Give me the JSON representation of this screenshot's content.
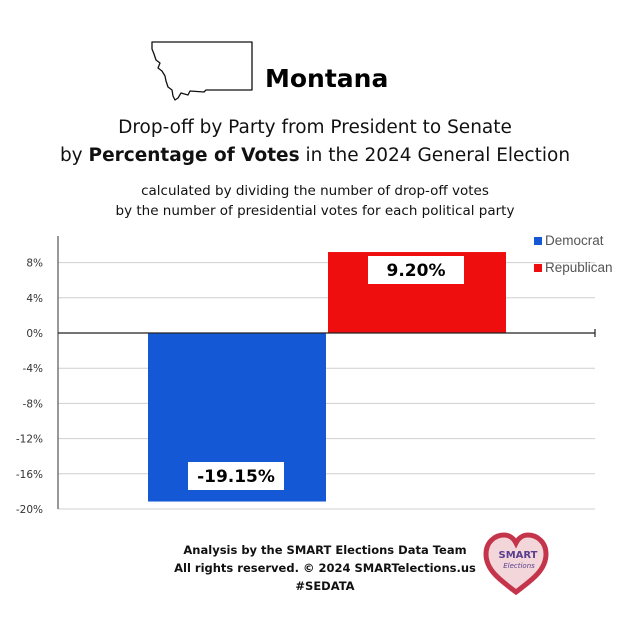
{
  "header": {
    "state_name": "Montana",
    "title_line1": "Drop-off by Party from President to Senate",
    "title_line2_prefix": "by ",
    "title_line2_bold": "Percentage of Votes",
    "title_line2_suffix": " in the 2024 General Election",
    "subtitle_line1": "calculated by dividing the number of drop-off votes",
    "subtitle_line2": "by the number of presidential votes for each political party"
  },
  "chart_data": {
    "type": "bar",
    "categories": [
      "Democrat",
      "Republican"
    ],
    "values": [
      -19.15,
      9.2
    ],
    "data_labels": [
      "-19.15%",
      "9.20%"
    ],
    "colors": [
      "#1558d6",
      "#ef0e0e"
    ],
    "ylim": [
      -20,
      10
    ],
    "yticks": [
      8,
      4,
      0,
      -4,
      -8,
      -12,
      -16,
      -20
    ],
    "ytick_labels": [
      "8%",
      "4%",
      "0%",
      "-4%",
      "-8%",
      "-12%",
      "-16%",
      "-20%"
    ],
    "grid": true,
    "legend": {
      "position": "top-right",
      "entries": [
        "Democrat",
        "Republican"
      ]
    }
  },
  "footer": {
    "line1": "Analysis by the SMART Elections Data Team",
    "line2": "All rights reserved. © 2024 SMARTelections.us",
    "line3": "#SEDATA"
  },
  "logo": {
    "text_line1": "SMART",
    "text_line2": "Elections",
    "color": "#c4344a"
  }
}
